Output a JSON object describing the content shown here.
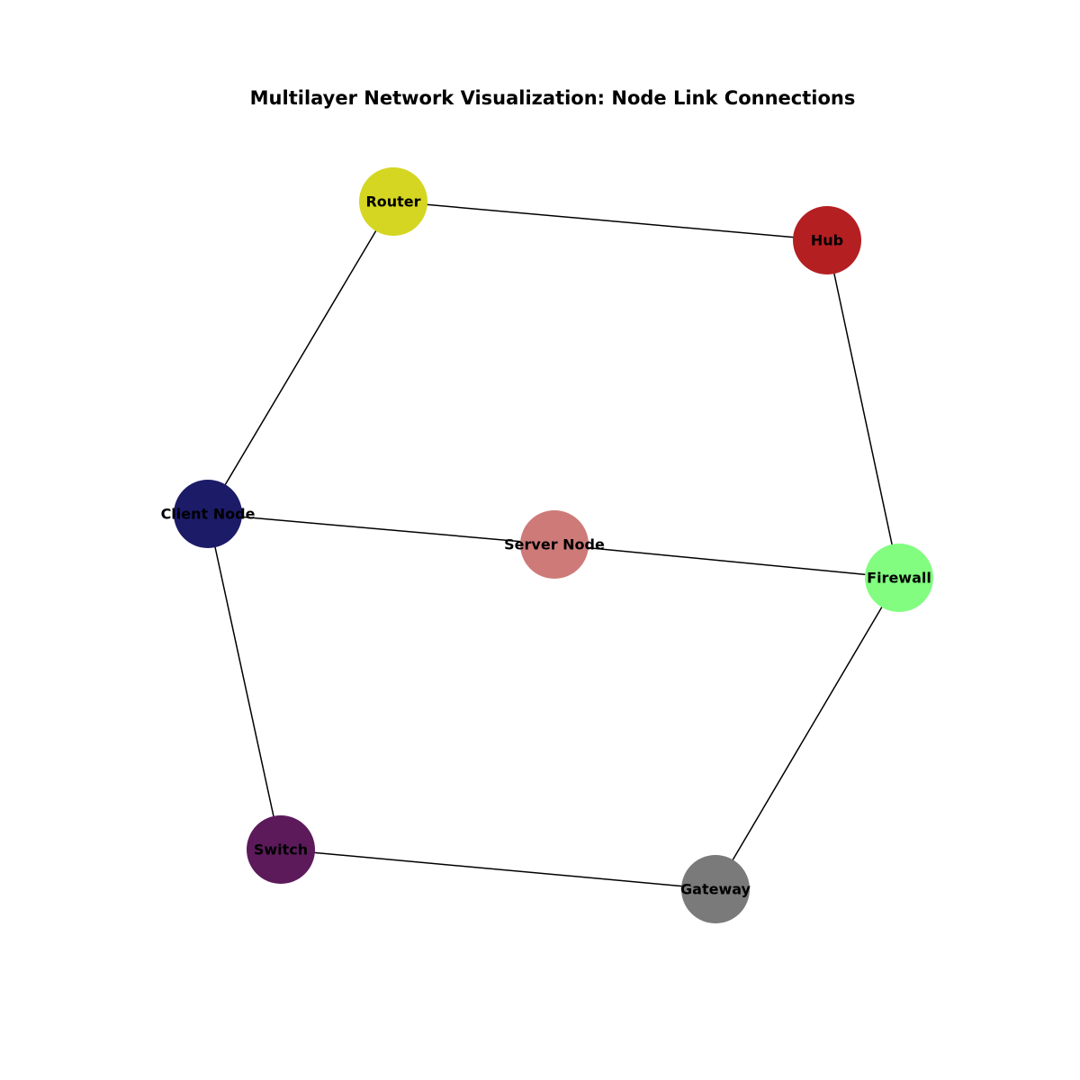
{
  "title": "Multilayer Network Visualization: Node Link Connections",
  "nodes": [
    {
      "id": "router",
      "label": "Router",
      "color": "#d4d621"
    },
    {
      "id": "hub",
      "label": "Hub",
      "color": "#b41f22"
    },
    {
      "id": "client",
      "label": "Client Node",
      "color": "#1c1b68"
    },
    {
      "id": "server",
      "label": "Server Node",
      "color": "#cd7a79"
    },
    {
      "id": "firewall",
      "label": "Firewall",
      "color": "#82fd80"
    },
    {
      "id": "switch",
      "label": "Switch",
      "color": "#5c1a5b"
    },
    {
      "id": "gateway",
      "label": "Gateway",
      "color": "#7a7a7a"
    }
  ],
  "edges": [
    {
      "source": "router",
      "target": "hub"
    },
    {
      "source": "router",
      "target": "client"
    },
    {
      "source": "hub",
      "target": "firewall"
    },
    {
      "source": "client",
      "target": "server"
    },
    {
      "source": "client",
      "target": "switch"
    },
    {
      "source": "server",
      "target": "firewall"
    },
    {
      "source": "firewall",
      "target": "gateway"
    },
    {
      "source": "switch",
      "target": "gateway"
    }
  ]
}
